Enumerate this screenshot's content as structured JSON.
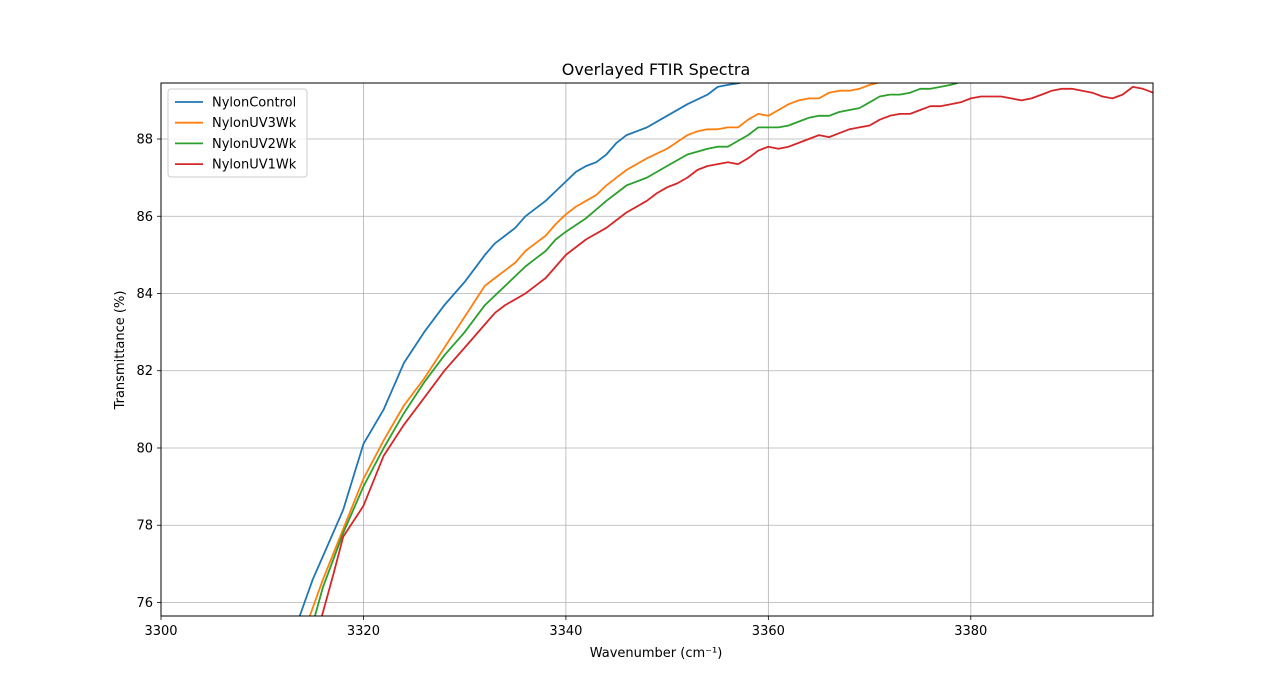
{
  "chart_data": {
    "type": "line",
    "title": "Overlayed FTIR Spectra",
    "xlabel": "Wavenumber (cm⁻¹)",
    "ylabel": "Transmittance (%)",
    "xlim": [
      3300,
      3398
    ],
    "ylim": [
      75.65,
      89.45
    ],
    "xticks": [
      3300,
      3320,
      3340,
      3360,
      3380
    ],
    "yticks": [
      76,
      78,
      80,
      82,
      84,
      86,
      88
    ],
    "grid": true,
    "legend": "upper left",
    "series": [
      {
        "name": "NylonControl",
        "color": "#1f77b4",
        "x": [
          3313.7,
          3315,
          3316,
          3318,
          3320,
          3322,
          3323,
          3324,
          3326,
          3328,
          3330,
          3332,
          3333,
          3334,
          3335,
          3336,
          3338,
          3339,
          3340,
          3341,
          3342,
          3343,
          3344,
          3345,
          3346,
          3348,
          3350,
          3352,
          3354,
          3355,
          3356,
          3357.2
        ],
        "y": [
          75.65,
          76.6,
          77.2,
          78.4,
          80.1,
          81.0,
          81.6,
          82.2,
          83.0,
          83.7,
          84.3,
          85.0,
          85.3,
          85.5,
          85.7,
          86.0,
          86.4,
          86.65,
          86.9,
          87.15,
          87.3,
          87.4,
          87.6,
          87.9,
          88.1,
          88.3,
          88.6,
          88.9,
          89.15,
          89.35,
          89.4,
          89.45
        ]
      },
      {
        "name": "NylonUV3Wk",
        "color": "#ff7f0e",
        "x": [
          3314.7,
          3316,
          3318,
          3320,
          3322,
          3324,
          3326,
          3328,
          3330,
          3332,
          3333,
          3334,
          3335,
          3336,
          3337,
          3338,
          3339,
          3340,
          3341,
          3342,
          3343,
          3344,
          3345,
          3346,
          3348,
          3350,
          3352,
          3353,
          3354,
          3355,
          3356,
          3357,
          3358,
          3359,
          3360,
          3361,
          3362,
          3363,
          3364,
          3365,
          3366,
          3367,
          3368,
          3369,
          3370,
          3370.8
        ],
        "y": [
          75.65,
          76.6,
          77.9,
          79.2,
          80.2,
          81.1,
          81.8,
          82.6,
          83.4,
          84.2,
          84.4,
          84.6,
          84.8,
          85.1,
          85.3,
          85.5,
          85.8,
          86.05,
          86.25,
          86.4,
          86.55,
          86.8,
          87.0,
          87.2,
          87.5,
          87.75,
          88.1,
          88.2,
          88.25,
          88.25,
          88.3,
          88.3,
          88.5,
          88.65,
          88.6,
          88.75,
          88.9,
          89.0,
          89.05,
          89.05,
          89.2,
          89.25,
          89.25,
          89.3,
          89.4,
          89.45
        ]
      },
      {
        "name": "NylonUV2Wk",
        "color": "#2ca02c",
        "x": [
          3315.2,
          3316,
          3318,
          3320,
          3322,
          3324,
          3326,
          3328,
          3330,
          3332,
          3334,
          3336,
          3337,
          3338,
          3339,
          3340,
          3342,
          3344,
          3345,
          3346,
          3348,
          3350,
          3352,
          3354,
          3355,
          3356,
          3357,
          3358,
          3359,
          3360,
          3361,
          3362,
          3363,
          3364,
          3365,
          3366,
          3367,
          3368,
          3369,
          3370,
          3371,
          3372,
          3373,
          3374,
          3375,
          3376,
          3377,
          3378,
          3378.7
        ],
        "y": [
          75.65,
          76.4,
          77.8,
          79.0,
          80.0,
          80.9,
          81.7,
          82.4,
          83.0,
          83.7,
          84.2,
          84.7,
          84.9,
          85.1,
          85.4,
          85.6,
          85.95,
          86.4,
          86.6,
          86.8,
          87.0,
          87.3,
          87.6,
          87.75,
          87.8,
          87.8,
          87.95,
          88.1,
          88.3,
          88.3,
          88.3,
          88.35,
          88.45,
          88.55,
          88.6,
          88.6,
          88.7,
          88.75,
          88.8,
          88.95,
          89.1,
          89.15,
          89.15,
          89.2,
          89.3,
          89.3,
          89.35,
          89.4,
          89.45
        ]
      },
      {
        "name": "NylonUV1Wk",
        "color": "#d62728",
        "x": [
          3315.9,
          3317,
          3318,
          3320,
          3322,
          3324,
          3326,
          3328,
          3330,
          3332,
          3333,
          3334,
          3335,
          3336,
          3337,
          3338,
          3339,
          3340,
          3342,
          3344,
          3345,
          3346,
          3348,
          3349,
          3350,
          3351,
          3352,
          3353,
          3354,
          3355,
          3356,
          3357,
          3358,
          3359,
          3360,
          3361,
          3362,
          3363,
          3364,
          3365,
          3366,
          3367,
          3368,
          3369,
          3370,
          3371,
          3372,
          3373,
          3374,
          3375,
          3376,
          3377,
          3378,
          3379,
          3380,
          3381,
          3382,
          3383,
          3384,
          3385,
          3386,
          3387,
          3388,
          3389,
          3390,
          3391,
          3392,
          3393,
          3394,
          3395,
          3396,
          3397,
          3398
        ],
        "y": [
          75.65,
          76.7,
          77.7,
          78.5,
          79.8,
          80.6,
          81.3,
          82.0,
          82.6,
          83.2,
          83.5,
          83.7,
          83.85,
          84.0,
          84.2,
          84.4,
          84.7,
          85.0,
          85.4,
          85.7,
          85.9,
          86.1,
          86.4,
          86.6,
          86.75,
          86.85,
          87.0,
          87.2,
          87.3,
          87.35,
          87.4,
          87.35,
          87.5,
          87.7,
          87.8,
          87.75,
          87.8,
          87.9,
          88.0,
          88.1,
          88.05,
          88.15,
          88.25,
          88.3,
          88.35,
          88.5,
          88.6,
          88.65,
          88.65,
          88.75,
          88.85,
          88.85,
          88.9,
          88.95,
          89.05,
          89.1,
          89.1,
          89.1,
          89.05,
          89.0,
          89.05,
          89.15,
          89.25,
          89.3,
          89.3,
          89.25,
          89.2,
          89.1,
          89.05,
          89.15,
          89.35,
          89.3,
          89.2
        ]
      }
    ]
  }
}
